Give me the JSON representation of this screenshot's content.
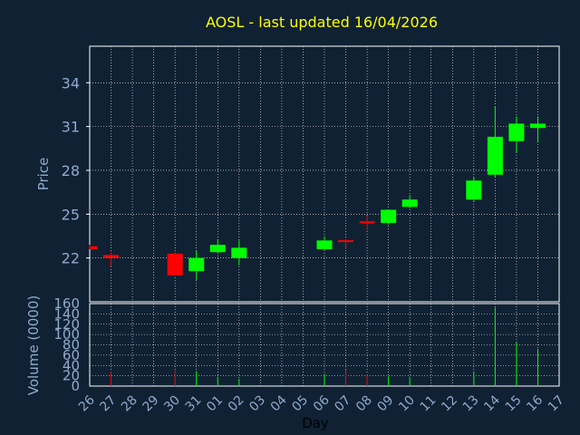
{
  "chart_data": {
    "type": "candlestick",
    "title": "AOSL - last updated 16/04/2026",
    "xlabel": "Day",
    "price_panel": {
      "ylabel": "Price",
      "ylim": [
        19.0,
        36.5
      ],
      "yticks": [
        22,
        25,
        28,
        31,
        34
      ],
      "grid": true
    },
    "volume_panel": {
      "ylabel": "Volume (0000)",
      "ylim": [
        0,
        160
      ],
      "yticks": [
        0,
        20,
        40,
        60,
        80,
        100,
        120,
        140,
        160
      ],
      "grid": true
    },
    "x_ticks": [
      "26",
      "27",
      "28",
      "29",
      "30",
      "31",
      "01",
      "02",
      "03",
      "04",
      "05",
      "06",
      "07",
      "08",
      "09",
      "10",
      "11",
      "12",
      "13",
      "14",
      "15",
      "16",
      "17"
    ],
    "candles": [
      {
        "x": "26",
        "open": 22.8,
        "high": 22.9,
        "low": 22.6,
        "close": 22.6,
        "volume": 0
      },
      {
        "x": "27",
        "open": 22.2,
        "high": 22.4,
        "low": 21.4,
        "close": 22.0,
        "volume": 28
      },
      {
        "x": "30",
        "open": 22.3,
        "high": 22.4,
        "low": 20.8,
        "close": 20.8,
        "volume": 30
      },
      {
        "x": "31",
        "open": 21.1,
        "high": 22.5,
        "low": 20.5,
        "close": 22.0,
        "volume": 29
      },
      {
        "x": "01",
        "open": 22.4,
        "high": 23.3,
        "low": 22.3,
        "close": 22.9,
        "volume": 18
      },
      {
        "x": "02",
        "open": 22.0,
        "high": 23.2,
        "low": 21.5,
        "close": 22.7,
        "volume": 14
      },
      {
        "x": "06",
        "open": 22.6,
        "high": 23.5,
        "low": 22.5,
        "close": 23.2,
        "volume": 24
      },
      {
        "x": "07",
        "open": 23.2,
        "high": 23.3,
        "low": 22.6,
        "close": 23.1,
        "volume": 32
      },
      {
        "x": "08",
        "open": 24.5,
        "high": 24.9,
        "low": 23.9,
        "close": 24.4,
        "volume": 22
      },
      {
        "x": "09",
        "open": 24.4,
        "high": 25.3,
        "low": 24.3,
        "close": 25.3,
        "volume": 19
      },
      {
        "x": "10",
        "open": 25.5,
        "high": 26.3,
        "low": 25.4,
        "close": 26.0,
        "volume": 18
      },
      {
        "x": "13",
        "open": 26.0,
        "high": 27.5,
        "low": 25.9,
        "close": 27.3,
        "volume": 27
      },
      {
        "x": "14",
        "open": 27.7,
        "high": 32.4,
        "low": 27.5,
        "close": 30.3,
        "volume": 152
      },
      {
        "x": "15",
        "open": 30.0,
        "high": 31.7,
        "low": 29.2,
        "close": 31.2,
        "volume": 85
      },
      {
        "x": "16",
        "open": 30.9,
        "high": 31.7,
        "low": 29.9,
        "close": 31.2,
        "volume": 72
      }
    ],
    "colors": {
      "background": "#0f2133",
      "up": "#00ff00",
      "down": "#ff0000",
      "grid": "#ffffff",
      "axis_text": "#8faacc",
      "title": "#ffff00",
      "xlabel": "#000000"
    }
  }
}
